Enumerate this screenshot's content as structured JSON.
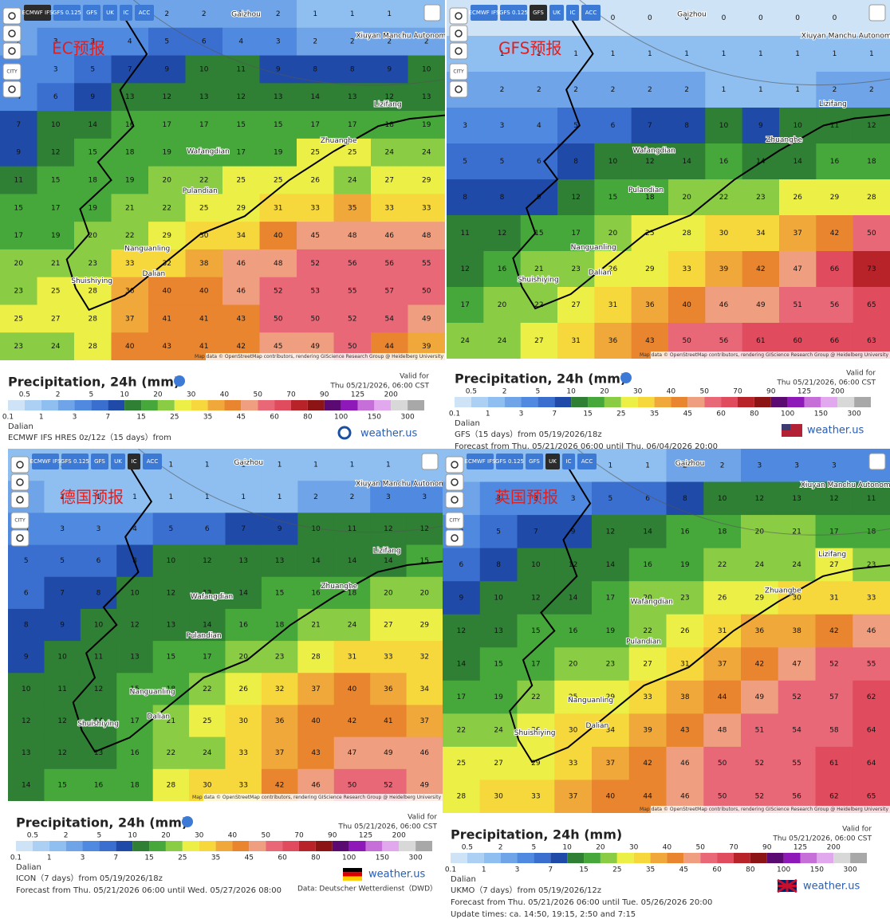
{
  "common": {
    "title": "Precipitation, 24h (mm)",
    "valid_for": "Valid for",
    "valid_time": "Thu 05/21/2026, 06:00 CST",
    "location": "Dalian",
    "brand": "weather.us",
    "attribution": "Map data © OpenStreetMap contributors, rendering GIScience Research Group @ Heidelberg University",
    "buttons": [
      "ECMWF IFS",
      "GFS 0.125",
      "GFS",
      "UK",
      "IC",
      "ACC"
    ],
    "city_button": "CITY",
    "places": [
      "Gaizhou",
      "Xiuyan Manchu Autonomous County",
      "Wafangdian",
      "Zhuanghe",
      "Pulandian",
      "Dalian",
      "Nanguanling",
      "Shuishiying",
      "Lizifang"
    ]
  },
  "legend_scale": {
    "thresholds": [
      0.1,
      0.5,
      1,
      2,
      3,
      5,
      7,
      10,
      15,
      20,
      25,
      30,
      35,
      40,
      45,
      50,
      60,
      70,
      80,
      90,
      100,
      125,
      150,
      200,
      300
    ],
    "colors": [
      "#cfe3f7",
      "#acd0f4",
      "#8ebff0",
      "#6fa5e8",
      "#4f8ae0",
      "#3a6fd0",
      "#1f4aa8",
      "#2f7f35",
      "#46a83b",
      "#8acd45",
      "#ecef45",
      "#f6d83c",
      "#f0a83a",
      "#e8852e",
      "#ef9f80",
      "#e86878",
      "#e04b5e",
      "#b8232a",
      "#8c1414",
      "#5a0a70",
      "#8e19b8",
      "#c76fd8",
      "#e2a8ee",
      "#d8d8d8",
      "#a8a8a8"
    ]
  },
  "panels": [
    {
      "label": "EC预报",
      "active": 0,
      "lines": [
        "ECMWF IFS HRES 0z/12z（15 days）from"
      ],
      "grid": [
        [
          2,
          2,
          2,
          2,
          2,
          2,
          2,
          2,
          1,
          1,
          1,
          1
        ],
        [
          2,
          3,
          3,
          4,
          5,
          6,
          4,
          3,
          2,
          2,
          2,
          2
        ],
        [
          3,
          3,
          5,
          7,
          9,
          10,
          11,
          9,
          8,
          8,
          9,
          10
        ],
        [
          4,
          6,
          9,
          13,
          12,
          13,
          12,
          13,
          14,
          13,
          12,
          13
        ],
        [
          7,
          10,
          14,
          16,
          17,
          17,
          15,
          15,
          17,
          17,
          18,
          19
        ],
        [
          9,
          12,
          15,
          18,
          19,
          17,
          17,
          19,
          25,
          25,
          24,
          24
        ],
        [
          11,
          15,
          18,
          19,
          20,
          22,
          25,
          25,
          26,
          24,
          27,
          29
        ],
        [
          15,
          17,
          19,
          21,
          22,
          25,
          29,
          31,
          33,
          35,
          33,
          33
        ],
        [
          17,
          19,
          20,
          22,
          29,
          30,
          34,
          40,
          45,
          48,
          46,
          48
        ],
        [
          20,
          21,
          23,
          33,
          32,
          38,
          46,
          48,
          52,
          56,
          56,
          55
        ],
        [
          23,
          25,
          28,
          36,
          40,
          40,
          46,
          52,
          53,
          55,
          57,
          50
        ],
        [
          25,
          27,
          28,
          37,
          41,
          41,
          43,
          50,
          50,
          52,
          54,
          49
        ],
        [
          23,
          24,
          28,
          40,
          43,
          41,
          42,
          45,
          49,
          50,
          44,
          39
        ]
      ]
    },
    {
      "label": "GFS预报",
      "active": 2,
      "lines": [
        "GFS（15 days）from 05/19/2026/18z",
        "Forecast from Thu. 05/21/2026 06:00 until Thu. 06/04/2026 20:00"
      ],
      "grid": [
        [
          0,
          0,
          0,
          0,
          0,
          0,
          0,
          0,
          0,
          0,
          0,
          0
        ],
        [
          1,
          1,
          1,
          1,
          1,
          1,
          1,
          1,
          1,
          1,
          1,
          1
        ],
        [
          2,
          2,
          2,
          2,
          2,
          2,
          2,
          1,
          1,
          1,
          2,
          2
        ],
        [
          3,
          3,
          4,
          5,
          6,
          7,
          8,
          10,
          9,
          10,
          11,
          12
        ],
        [
          5,
          5,
          6,
          8,
          10,
          12,
          14,
          16,
          14,
          14,
          16,
          18
        ],
        [
          8,
          8,
          9,
          12,
          15,
          18,
          20,
          22,
          23,
          26,
          29,
          28
        ],
        [
          11,
          12,
          15,
          17,
          20,
          25,
          28,
          30,
          34,
          37,
          42,
          50
        ],
        [
          12,
          16,
          21,
          23,
          26,
          29,
          33,
          39,
          42,
          47,
          66,
          73
        ],
        [
          17,
          20,
          22,
          27,
          31,
          36,
          40,
          46,
          49,
          51,
          56,
          65
        ],
        [
          24,
          24,
          27,
          31,
          36,
          43,
          50,
          56,
          61,
          60,
          66,
          63
        ]
      ]
    },
    {
      "label": "德国预报",
      "active": 4,
      "lines": [
        "ICON（7 days）from 05/19/2026/18z",
        "Forecast from Thu. 05/21/2026 06:00 until Wed. 05/27/2026 08:00"
      ],
      "note": "Data: Deutscher Wetterdienst（DWD）",
      "grid": [
        [
          1,
          1,
          1,
          1,
          1,
          1,
          1,
          1,
          1,
          1,
          1,
          1
        ],
        [
          2,
          1,
          1,
          1,
          1,
          1,
          1,
          1,
          2,
          2,
          3,
          3
        ],
        [
          3,
          3,
          3,
          4,
          5,
          6,
          7,
          9,
          10,
          11,
          12,
          12
        ],
        [
          5,
          5,
          6,
          8,
          10,
          12,
          13,
          13,
          14,
          14,
          14,
          15
        ],
        [
          6,
          7,
          8,
          10,
          12,
          13,
          14,
          15,
          16,
          18,
          20,
          20
        ],
        [
          8,
          9,
          10,
          12,
          13,
          14,
          16,
          18,
          21,
          24,
          27,
          29
        ],
        [
          9,
          10,
          11,
          13,
          15,
          17,
          20,
          23,
          28,
          31,
          33,
          32
        ],
        [
          10,
          11,
          12,
          15,
          18,
          22,
          26,
          32,
          37,
          40,
          36,
          34
        ],
        [
          12,
          12,
          14,
          17,
          21,
          25,
          30,
          36,
          40,
          42,
          41,
          37
        ],
        [
          13,
          12,
          13,
          16,
          22,
          24,
          33,
          37,
          43,
          47,
          49,
          46
        ],
        [
          14,
          15,
          16,
          18,
          28,
          30,
          33,
          42,
          46,
          50,
          52,
          49
        ]
      ]
    },
    {
      "label": "英国预报",
      "active": 3,
      "lines": [
        "UKMO（7 days）from 05/19/2026/12z",
        "Forecast from Thu. 05/21/2026 06:00 until Tue. 05/26/2026 20:00",
        "Update times: ca. 14:50, 19:15, 2:50 and 7:15"
      ],
      "grid": [
        [
          1,
          1,
          1,
          1,
          1,
          1,
          2,
          2,
          3,
          3,
          3,
          3
        ],
        [
          2,
          3,
          3,
          3,
          5,
          6,
          8,
          10,
          12,
          13,
          12,
          11
        ],
        [
          3,
          5,
          7,
          9,
          12,
          14,
          16,
          18,
          20,
          21,
          17,
          18
        ],
        [
          6,
          8,
          10,
          12,
          14,
          16,
          19,
          22,
          24,
          24,
          27,
          23
        ],
        [
          9,
          10,
          12,
          14,
          17,
          20,
          23,
          26,
          29,
          30,
          31,
          33
        ],
        [
          12,
          13,
          15,
          16,
          19,
          22,
          26,
          31,
          36,
          38,
          42,
          46
        ],
        [
          14,
          15,
          17,
          20,
          23,
          27,
          31,
          37,
          42,
          47,
          52,
          55
        ],
        [
          17,
          19,
          22,
          25,
          29,
          33,
          38,
          44,
          49,
          52,
          57,
          62
        ],
        [
          22,
          24,
          26,
          30,
          34,
          39,
          43,
          48,
          51,
          54,
          58,
          64
        ],
        [
          25,
          27,
          29,
          33,
          37,
          42,
          46,
          50,
          52,
          55,
          61,
          64
        ],
        [
          28,
          30,
          33,
          37,
          40,
          44,
          46,
          50,
          52,
          56,
          62,
          65
        ]
      ]
    }
  ]
}
